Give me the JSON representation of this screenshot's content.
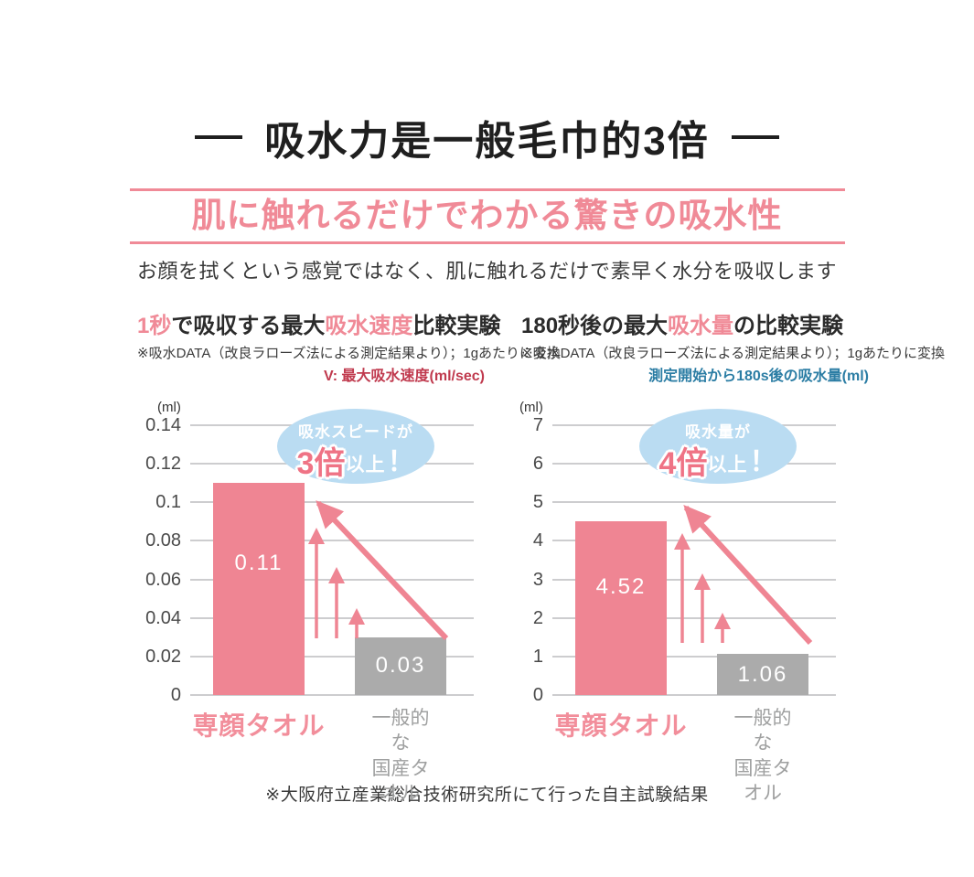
{
  "header": {
    "title": "吸水力是一般毛巾的3倍",
    "banner": "肌に触れるだけでわかる驚きの吸水性",
    "subtitle": "お顔を拭くという感覚ではなく、肌に触れるだけで素早く水分を吸収します"
  },
  "footer": {
    "note": "※大阪府立産業総合技術研究所にて行った自主試験結果"
  },
  "colors": {
    "accent_pink": "#F08A97",
    "bar_pink": "#EF8593",
    "bar_gray": "#ABABAB",
    "bubble_blue": "#BADCF2",
    "legend_red": "#C03A4E",
    "legend_blue": "#2B7DA4",
    "text_dark": "#2B2B2B",
    "text_gray": "#9FA0A0",
    "gridline": "#CDCDCF"
  },
  "chart_data": [
    {
      "type": "bar",
      "title": "1秒で吸収する最大吸水速度比較実験",
      "title_parts": [
        {
          "text": "1秒",
          "accent": true
        },
        {
          "text": "で吸収する最大",
          "accent": false
        },
        {
          "text": "吸水速度",
          "accent": true
        },
        {
          "text": "比較実験",
          "accent": false
        }
      ],
      "note": "※吸水DATA（改良ラローズ法による測定結果より）；1gあたりに変換",
      "legend": "V: 最大吸水速度(ml/sec)",
      "legend_color": "#C03A4E",
      "unit": "(ml)",
      "categories": [
        "専顔タオル",
        "一般的な\n国産タオル"
      ],
      "values": [
        0.11,
        0.03
      ],
      "value_labels": [
        "0.11",
        "0.03"
      ],
      "ylabel": "",
      "xlabel": "",
      "ylim": [
        0,
        0.14
      ],
      "ytick_labels": [
        "0.14",
        "0.12",
        "0.1",
        "0.08",
        "0.06",
        "0.04",
        "0.02",
        "0"
      ],
      "grid": true,
      "annotation": {
        "line1": "吸水スピードが",
        "accent": "3倍",
        "rest": "以上",
        "bang": "！"
      }
    },
    {
      "type": "bar",
      "title": "180秒後の最大吸水量の比較実験",
      "title_parts": [
        {
          "text": "180秒後の最大",
          "accent": false
        },
        {
          "text": "吸水量",
          "accent": true
        },
        {
          "text": "の比較実験",
          "accent": false
        }
      ],
      "note": "※吸水DATA（改良ラローズ法による測定結果より）；1gあたりに変換",
      "legend": "測定開始から180s後の吸水量(ml)",
      "legend_color": "#2B7DA4",
      "unit": "(ml)",
      "categories": [
        "専顔タオル",
        "一般的な\n国産タオル"
      ],
      "values": [
        4.52,
        1.06
      ],
      "value_labels": [
        "4.52",
        "1.06"
      ],
      "ylabel": "",
      "xlabel": "",
      "ylim": [
        0,
        7
      ],
      "ytick_labels": [
        "7",
        "6",
        "5",
        "4",
        "3",
        "2",
        "1",
        "0"
      ],
      "grid": true,
      "annotation": {
        "line1": "吸水量が",
        "accent": "4倍",
        "rest": "以上",
        "bang": "！"
      }
    }
  ]
}
